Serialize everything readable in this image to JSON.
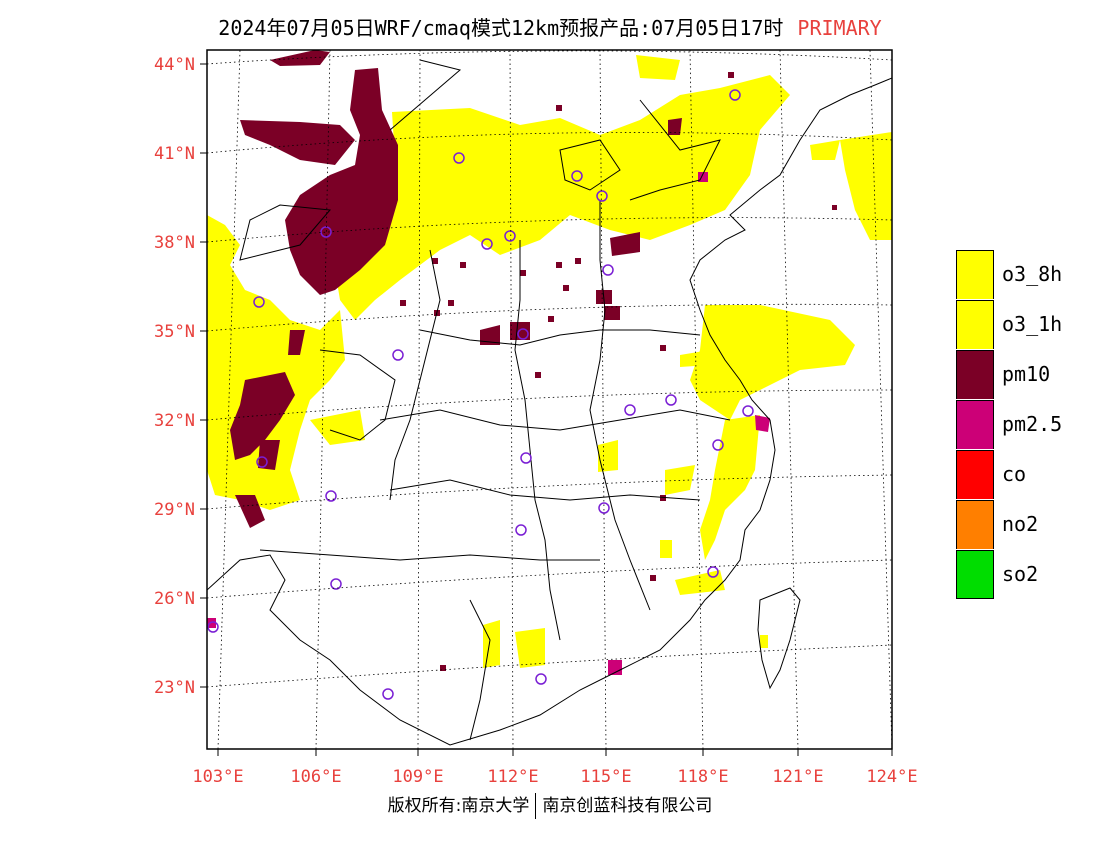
{
  "header": {
    "title": "2024年07月05日WRF/cmaq模式12km预报产品:07月05日17时",
    "tag": "PRIMARY"
  },
  "axes": {
    "lat_labels": [
      "44°N",
      "41°N",
      "38°N",
      "35°N",
      "32°N",
      "29°N",
      "26°N",
      "23°N"
    ],
    "lon_labels": [
      "103°E",
      "106°E",
      "109°E",
      "112°E",
      "115°E",
      "118°E",
      "121°E",
      "124°E"
    ]
  },
  "legend": [
    {
      "label": "o3_8h",
      "color": "#ffff00"
    },
    {
      "label": "o3_1h",
      "color": "#ffff00"
    },
    {
      "label": "pm10",
      "color": "#7b0026"
    },
    {
      "label": "pm2.5",
      "color": "#cc0077"
    },
    {
      "label": "co",
      "color": "#ff0000"
    },
    {
      "label": "no2",
      "color": "#ff7f00"
    },
    {
      "label": "so2",
      "color": "#00dd00"
    }
  ],
  "footer": {
    "left": "版权所有:南京大学",
    "right": "南京创蓝科技有限公司"
  }
}
